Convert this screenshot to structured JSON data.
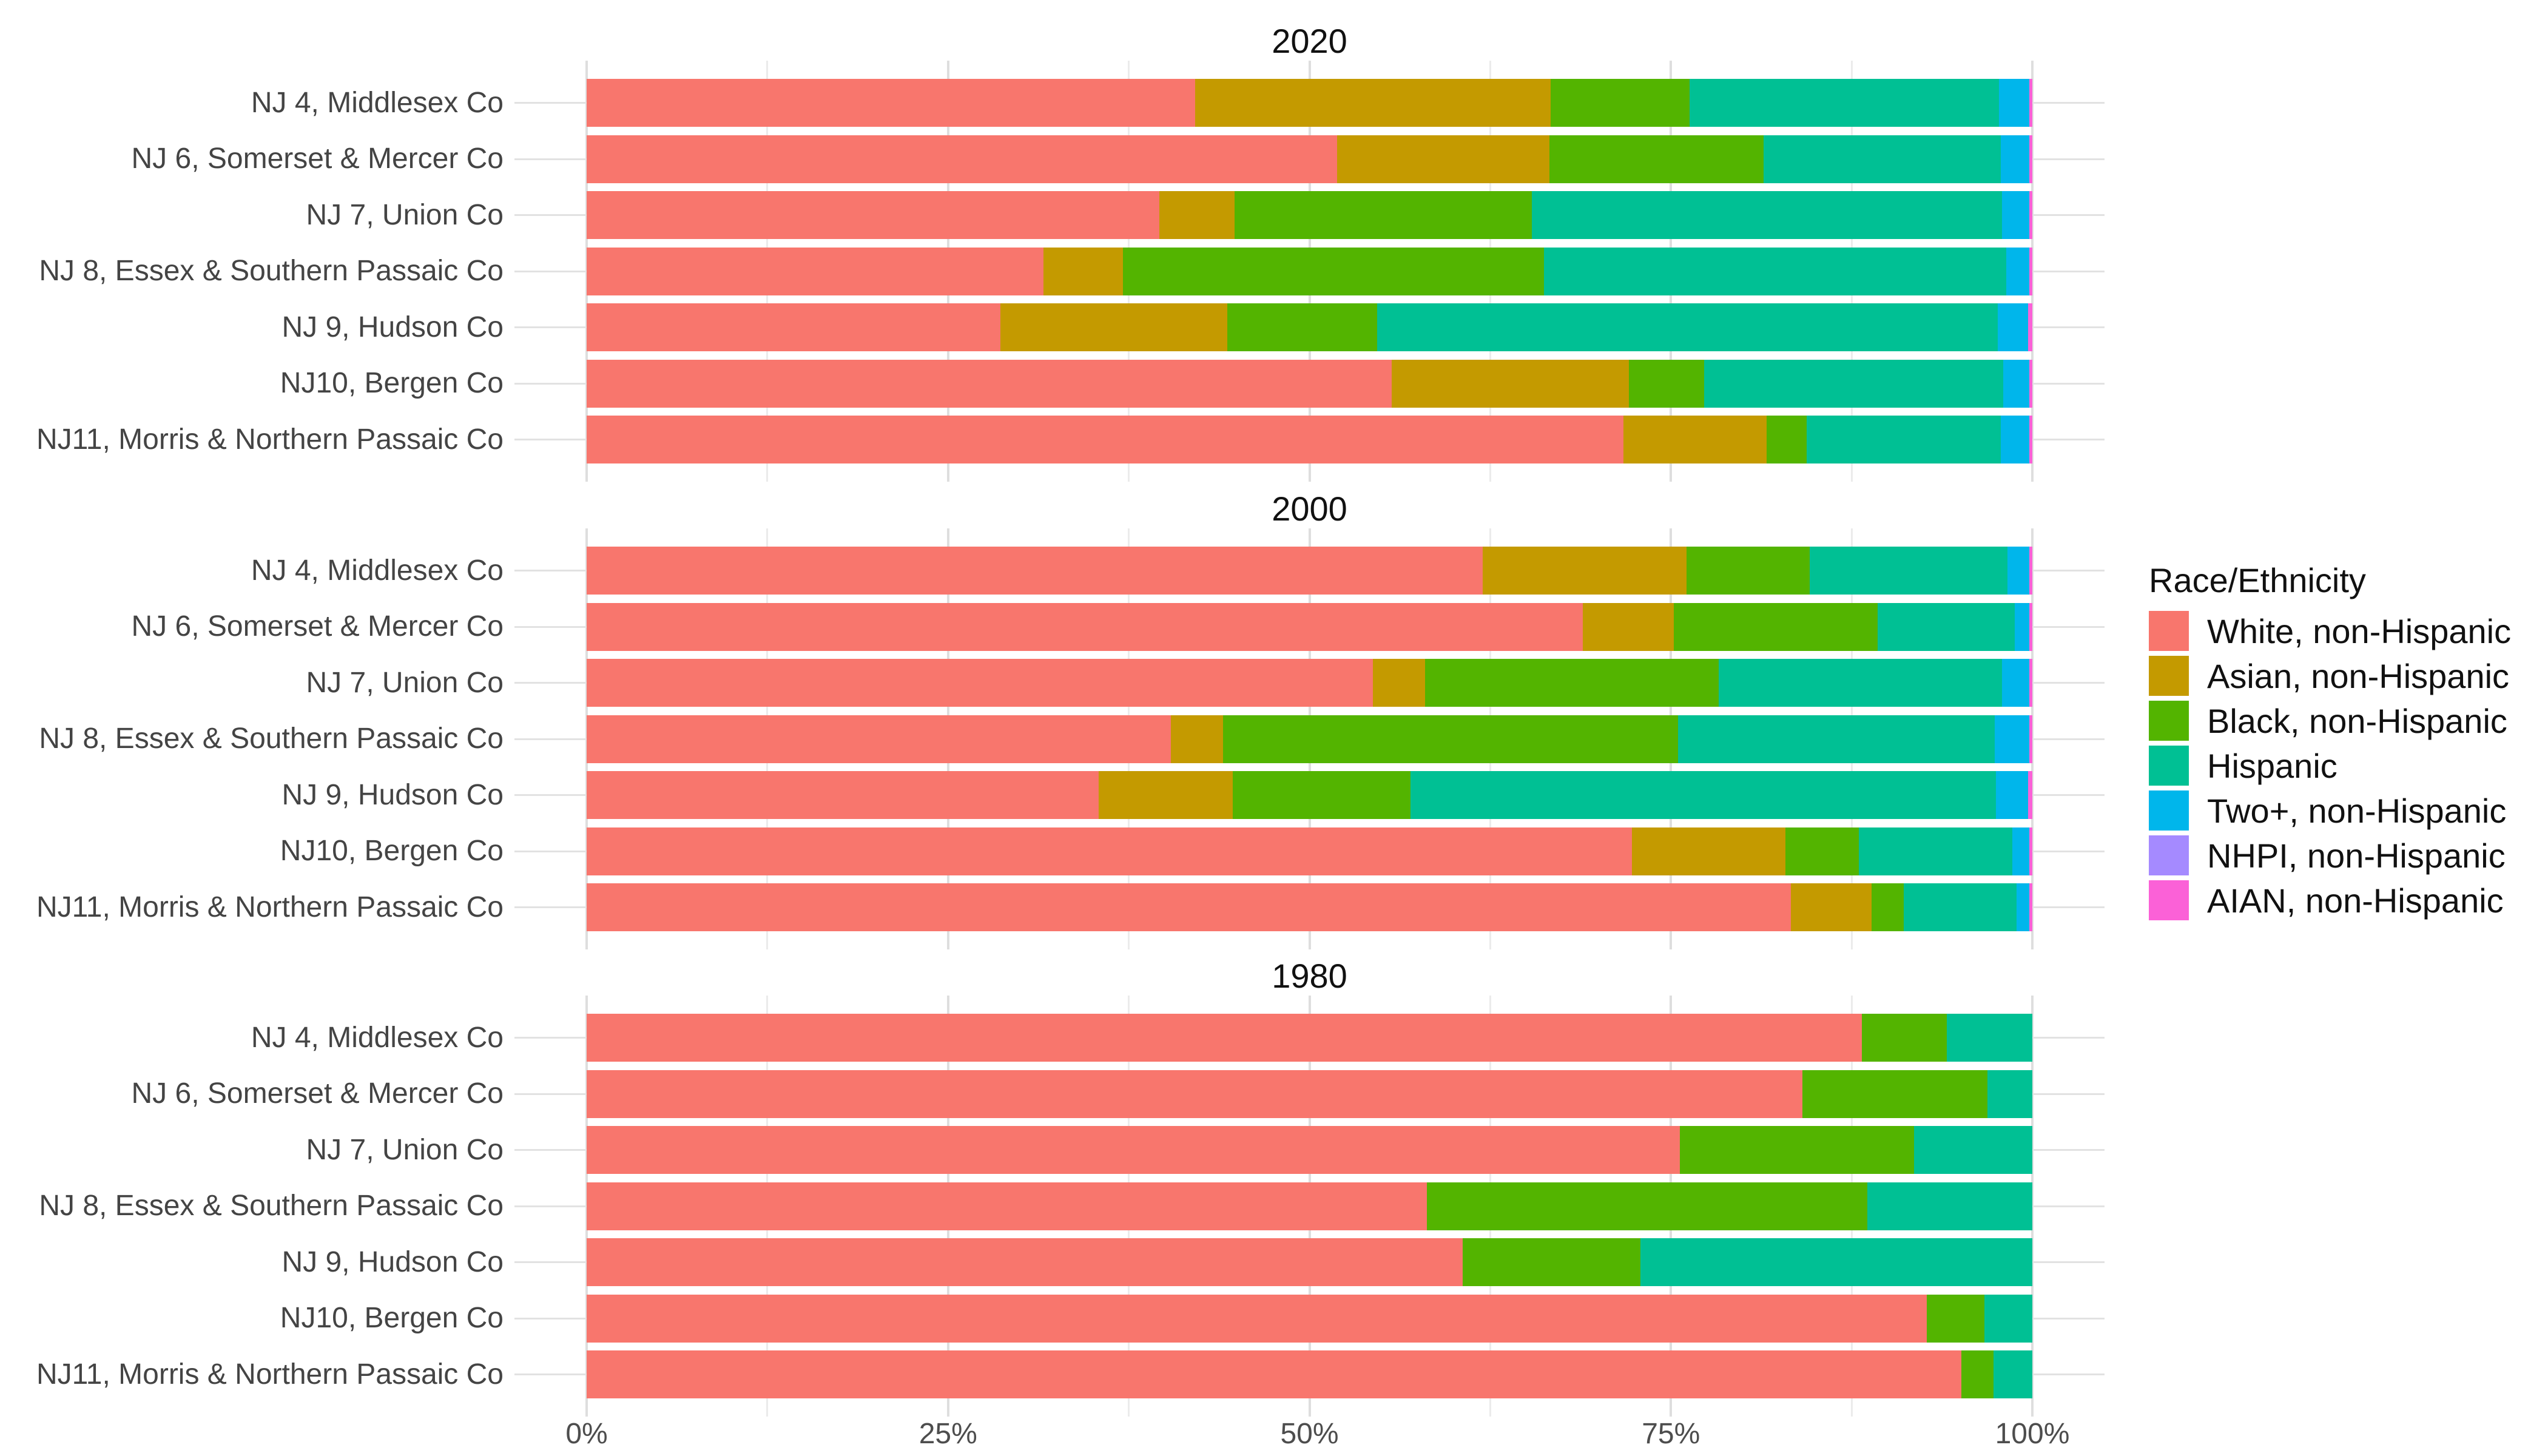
{
  "figure": {
    "background": "#FFFFFF"
  },
  "legend": {
    "title": "Race/Ethnicity",
    "entries": [
      {
        "label": "White, non-Hispanic",
        "color": "#F8766D"
      },
      {
        "label": "Asian, non-Hispanic",
        "color": "#C49A00"
      },
      {
        "label": "Black, non-Hispanic",
        "color": "#53B400"
      },
      {
        "label": "Hispanic",
        "color": "#00C094"
      },
      {
        "label": "Two+, non-Hispanic",
        "color": "#00B6EB"
      },
      {
        "label": "NHPI, non-Hispanic",
        "color": "#A58AFF"
      },
      {
        "label": "AIAN, non-Hispanic",
        "color": "#FB61D7"
      }
    ]
  },
  "chart_data": {
    "type": "bar",
    "orientation": "horizontal",
    "stacked": true,
    "units": "percent",
    "grid": true,
    "legend_position": "right",
    "xlim": [
      0,
      100
    ],
    "x_ticks": [
      {
        "label": "0%",
        "value": 0
      },
      {
        "label": "25%",
        "value": 25
      },
      {
        "label": "50%",
        "value": 50
      },
      {
        "label": "75%",
        "value": 75
      },
      {
        "label": "100%",
        "value": 100
      }
    ],
    "categories": [
      "NJ 4, Middlesex Co",
      "NJ 6, Somerset & Mercer Co",
      "NJ 7, Union Co",
      "NJ 8, Essex & Southern Passaic Co",
      "NJ 9, Hudson Co",
      "NJ10, Bergen Co",
      "NJ11, Morris & Northern Passaic Co"
    ],
    "panels": [
      {
        "title": "2020",
        "series": [
          {
            "name": "White, non-Hispanic",
            "values": [
              42.1,
              51.9,
              39.6,
              31.6,
              28.6,
              55.7,
              71.7
            ]
          },
          {
            "name": "Asian, non-Hispanic",
            "values": [
              24.6,
              14.7,
              5.2,
              5.5,
              15.7,
              16.4,
              9.9
            ]
          },
          {
            "name": "Black, non-Hispanic",
            "values": [
              9.6,
              14.8,
              20.6,
              29.1,
              10.4,
              5.2,
              2.8
            ]
          },
          {
            "name": "Hispanic",
            "values": [
              21.4,
              16.4,
              32.5,
              32.0,
              42.9,
              20.7,
              13.4
            ]
          },
          {
            "name": "Two+, non-Hispanic",
            "values": [
              2.1,
              2.0,
              1.9,
              1.6,
              2.1,
              1.8,
              2.0
            ]
          },
          {
            "name": "NHPI, non-Hispanic",
            "values": [
              0,
              0,
              0,
              0,
              0,
              0,
              0
            ]
          },
          {
            "name": "AIAN, non-Hispanic",
            "values": [
              0.2,
              0.2,
              0.2,
              0.2,
              0.3,
              0.2,
              0.2
            ]
          }
        ]
      },
      {
        "title": "2000",
        "series": [
          {
            "name": "White, non-Hispanic",
            "values": [
              62.0,
              68.9,
              54.4,
              40.4,
              35.4,
              72.3,
              83.3
            ]
          },
          {
            "name": "Asian, non-Hispanic",
            "values": [
              14.1,
              6.3,
              3.6,
              3.6,
              9.3,
              10.6,
              5.6
            ]
          },
          {
            "name": "Black, non-Hispanic",
            "values": [
              8.5,
              14.1,
              20.3,
              31.5,
              12.3,
              5.1,
              2.2
            ]
          },
          {
            "name": "Hispanic",
            "values": [
              13.7,
              9.5,
              19.6,
              21.9,
              40.5,
              10.6,
              7.8
            ]
          },
          {
            "name": "Two+, non-Hispanic",
            "values": [
              1.5,
              1.0,
              1.9,
              2.4,
              2.2,
              1.2,
              0.9
            ]
          },
          {
            "name": "NHPI, non-Hispanic",
            "values": [
              0,
              0,
              0,
              0,
              0,
              0,
              0
            ]
          },
          {
            "name": "AIAN, non-Hispanic",
            "values": [
              0.2,
              0.2,
              0.2,
              0.2,
              0.3,
              0.2,
              0.2
            ]
          }
        ]
      },
      {
        "title": "1980",
        "series": [
          {
            "name": "White, non-Hispanic",
            "values": [
              88.2,
              84.1,
              75.6,
              58.1,
              60.6,
              92.7,
              95.1
            ]
          },
          {
            "name": "Asian, non-Hispanic",
            "values": [
              0,
              0,
              0,
              0,
              0,
              0,
              0
            ]
          },
          {
            "name": "Black, non-Hispanic",
            "values": [
              5.9,
              12.8,
              16.2,
              30.5,
              12.3,
              4.0,
              2.2
            ]
          },
          {
            "name": "Hispanic",
            "values": [
              5.9,
              3.1,
              8.2,
              11.4,
              27.1,
              3.3,
              2.7
            ]
          },
          {
            "name": "Two+, non-Hispanic",
            "values": [
              0,
              0,
              0,
              0,
              0,
              0,
              0
            ]
          },
          {
            "name": "NHPI, non-Hispanic",
            "values": [
              0,
              0,
              0,
              0,
              0,
              0,
              0
            ]
          },
          {
            "name": "AIAN, non-Hispanic",
            "values": [
              0,
              0,
              0,
              0,
              0,
              0,
              0
            ]
          }
        ]
      }
    ]
  }
}
